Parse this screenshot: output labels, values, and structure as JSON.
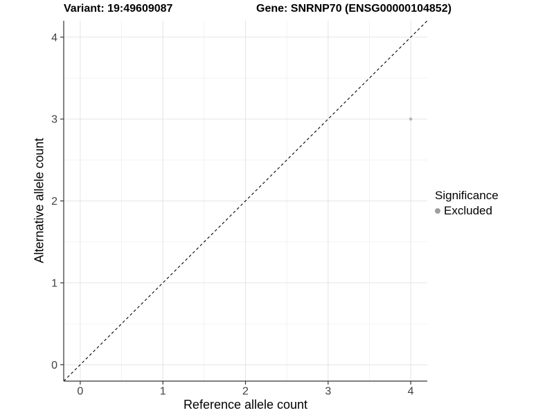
{
  "chart_data": {
    "type": "scatter",
    "title_left": "Variant: 19:49609087",
    "title_right": "Gene: SNRNP70 (ENSG00000104852)",
    "xlabel": "Reference allele count",
    "ylabel": "Alternative allele count",
    "xlim": [
      -0.2,
      4.2
    ],
    "ylim": [
      -0.2,
      4.2
    ],
    "x_ticks": [
      0,
      1,
      2,
      3,
      4
    ],
    "y_ticks": [
      0,
      1,
      2,
      3,
      4
    ],
    "grid": {
      "major": true,
      "minor": true,
      "major_color": "#e4e4e4",
      "minor_color": "#f2f2f2"
    },
    "axis_color": "#333333",
    "tick_label_color": "#404040",
    "reference_line": {
      "style": "dashed",
      "from": [
        -0.2,
        -0.2
      ],
      "to": [
        4.2,
        4.2
      ],
      "color": "#000000"
    },
    "series": [
      {
        "name": "Excluded",
        "color": "#b6b6b6",
        "points": [
          [
            4,
            3
          ]
        ]
      }
    ],
    "legend": {
      "title": "Significance",
      "position": "right",
      "entries": [
        {
          "label": "Excluded",
          "color": "#9e9e9e"
        }
      ]
    }
  }
}
